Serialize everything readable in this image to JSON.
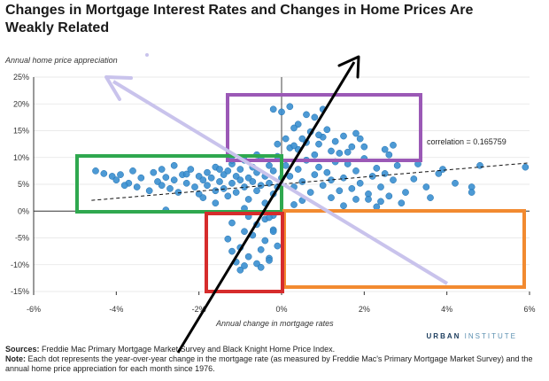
{
  "title": "Changes in Mortgage Interest Rates and Changes in Home Prices Are Weakly Related",
  "brand": {
    "part1": "URBAN",
    "part2": "INSTITUTE"
  },
  "sources": {
    "label": "Sources:",
    "text": "Freddie Mac Primary Mortgage Market Survey and Black Knight Home Price Index."
  },
  "note": {
    "label": "Note:",
    "text": "Each dot represents the year-over-year change in the mortgage rate (as measured by Freddie Mac's Primary Mortgage Market Survey) and the annual home price appreciation for each month since 1976."
  },
  "colors": {
    "dots": "#3a8fd0",
    "dot_stroke": "#1f6fae",
    "green": "#2fa84f",
    "purple": "#9b59b6",
    "orange": "#f28a30",
    "red": "#d62c2c",
    "lavender": "#c9c3ec",
    "black": "#000000"
  },
  "chart_data": {
    "type": "scatter",
    "title": "",
    "ylabel": "Annual home price appreciation",
    "xlabel": "Annual change in mortgage rates",
    "xlim": [
      -6,
      6
    ],
    "ylim": [
      -15,
      25
    ],
    "x_ticks": [
      -6,
      -4,
      -2,
      0,
      2,
      4,
      6
    ],
    "x_tick_labels": [
      "-6%",
      "-4%",
      "-2%",
      "0%",
      "2%",
      "4%",
      "6%"
    ],
    "y_ticks": [
      -15,
      -10,
      -5,
      0,
      5,
      10,
      15,
      20,
      25
    ],
    "y_tick_labels": [
      "-15%",
      "-10%",
      "-5%",
      "0%",
      "5%",
      "10%",
      "15%",
      "20%",
      "25%"
    ],
    "grid": "horizontal",
    "annotation": "correlation = 0.165759",
    "trendline": {
      "x": [
        -4.6,
        6
      ],
      "y": [
        2,
        9
      ]
    },
    "points": [
      [
        -4.5,
        7.5
      ],
      [
        -4.3,
        7
      ],
      [
        -4.1,
        6.5
      ],
      [
        -4.0,
        5.8
      ],
      [
        -3.9,
        6.8
      ],
      [
        -3.7,
        5.2
      ],
      [
        -3.6,
        7.5
      ],
      [
        -3.5,
        4.5
      ],
      [
        -3.4,
        6.2
      ],
      [
        -3.2,
        3.8
      ],
      [
        -3.1,
        7.2
      ],
      [
        -3.0,
        5.5
      ],
      [
        -2.9,
        4.8
      ],
      [
        -2.8,
        6.3
      ],
      [
        -2.7,
        4.2
      ],
      [
        -2.6,
        8.5
      ],
      [
        -2.6,
        5.8
      ],
      [
        -2.5,
        3.5
      ],
      [
        -2.4,
        6.8
      ],
      [
        -2.3,
        5.2
      ],
      [
        -2.2,
        7.8
      ],
      [
        -2.1,
        4.5
      ],
      [
        -2.0,
        6.5
      ],
      [
        -2.0,
        3.2
      ],
      [
        -1.9,
        5.8
      ],
      [
        -1.8,
        7.2
      ],
      [
        -1.8,
        4.8
      ],
      [
        -1.7,
        6.2
      ],
      [
        -1.6,
        3.8
      ],
      [
        -1.6,
        8.2
      ],
      [
        -1.5,
        5.5
      ],
      [
        -1.4,
        6.8
      ],
      [
        -1.4,
        4.2
      ],
      [
        -1.3,
        7.5
      ],
      [
        -1.3,
        2.8
      ],
      [
        -1.2,
        5.2
      ],
      [
        -1.2,
        8.8
      ],
      [
        -1.1,
        6.5
      ],
      [
        -1.1,
        3.5
      ],
      [
        -1.0,
        5.8
      ],
      [
        -1.0,
        7.8
      ],
      [
        -0.9,
        4.5
      ],
      [
        -0.9,
        9.5
      ],
      [
        -0.8,
        6.2
      ],
      [
        -0.8,
        2.2
      ],
      [
        -0.7,
        5.5
      ],
      [
        -0.7,
        8.2
      ],
      [
        -0.6,
        3.8
      ],
      [
        -0.6,
        7.2
      ],
      [
        -0.5,
        4.8
      ],
      [
        -0.5,
        9.8
      ],
      [
        -0.4,
        6.5
      ],
      [
        -0.4,
        1.5
      ],
      [
        -0.3,
        5.2
      ],
      [
        -0.3,
        8.5
      ],
      [
        -0.2,
        3.2
      ],
      [
        -0.2,
        7.5
      ],
      [
        -0.1,
        4.5
      ],
      [
        -0.1,
        10.2
      ],
      [
        0.0,
        6.2
      ],
      [
        -3.8,
        4.8
      ],
      [
        -2.9,
        7.8
      ],
      [
        -1.9,
        2.5
      ],
      [
        -1.5,
        7.8
      ],
      [
        -0.6,
        10.5
      ],
      [
        -1.2,
        9.5
      ],
      [
        -2.3,
        6.9
      ],
      [
        -0.9,
        0.5
      ],
      [
        -2.8,
        0.2
      ],
      [
        -1.6,
        1.5
      ],
      [
        -1.3,
        -5.2
      ],
      [
        -1.2,
        -7.5
      ],
      [
        -1.1,
        -9.5
      ],
      [
        -1.0,
        -6.8
      ],
      [
        -0.9,
        -10.2
      ],
      [
        -0.8,
        -8.5
      ],
      [
        -0.7,
        -4.5
      ],
      [
        -0.6,
        -9.8
      ],
      [
        -0.5,
        -7.2
      ],
      [
        -0.4,
        -5.5
      ],
      [
        -0.3,
        -8.8
      ],
      [
        -0.2,
        -3.5
      ],
      [
        -0.1,
        -6.5
      ],
      [
        -0.3,
        -9.2
      ],
      [
        -0.6,
        -2.5
      ],
      [
        -0.9,
        -3.8
      ],
      [
        -1.2,
        -2.2
      ],
      [
        -0.4,
        -1.5
      ],
      [
        -0.2,
        -0.8
      ],
      [
        -1.0,
        -11
      ],
      [
        -0.5,
        -10.5
      ],
      [
        -0.2,
        -3.8
      ],
      [
        -0.3,
        -1.2
      ],
      [
        -0.8,
        -1.0
      ],
      [
        -0.2,
        19
      ],
      [
        0.0,
        18.5
      ],
      [
        0.2,
        19.5
      ],
      [
        0.4,
        16.2
      ],
      [
        0.6,
        18
      ],
      [
        0.8,
        17.5
      ],
      [
        1.0,
        19
      ],
      [
        0.3,
        15.5
      ],
      [
        0.5,
        13.5
      ],
      [
        0.7,
        14.8
      ],
      [
        0.9,
        12.5
      ],
      [
        1.1,
        15.2
      ],
      [
        1.3,
        13
      ],
      [
        1.5,
        14
      ],
      [
        1.7,
        12
      ],
      [
        1.8,
        14.5
      ],
      [
        0.1,
        13.5
      ],
      [
        0.4,
        11.5
      ],
      [
        0.6,
        12.8
      ],
      [
        1.2,
        11.2
      ],
      [
        1.4,
        10.8
      ],
      [
        0.2,
        11.8
      ],
      [
        0.8,
        10.5
      ],
      [
        1.6,
        11
      ],
      [
        -0.1,
        12.5
      ],
      [
        1.9,
        13.5
      ],
      [
        2.0,
        12
      ],
      [
        1.0,
        13.8
      ],
      [
        0.3,
        12.2
      ],
      [
        0.9,
        14.2
      ],
      [
        0.1,
        8.5
      ],
      [
        0.2,
        6.5
      ],
      [
        0.3,
        4.5
      ],
      [
        0.4,
        7.8
      ],
      [
        0.5,
        5.5
      ],
      [
        0.6,
        9.5
      ],
      [
        0.7,
        3.5
      ],
      [
        0.8,
        6.8
      ],
      [
        0.9,
        8.2
      ],
      [
        1.0,
        4.8
      ],
      [
        1.1,
        7.2
      ],
      [
        1.2,
        5.8
      ],
      [
        1.3,
        9.2
      ],
      [
        1.4,
        3.8
      ],
      [
        1.5,
        6.2
      ],
      [
        1.6,
        8.8
      ],
      [
        1.7,
        4.2
      ],
      [
        1.8,
        7.5
      ],
      [
        1.9,
        5.2
      ],
      [
        2.0,
        9.8
      ],
      [
        2.1,
        3.2
      ],
      [
        2.2,
        6.5
      ],
      [
        2.3,
        8
      ],
      [
        2.4,
        4.5
      ],
      [
        2.5,
        7
      ],
      [
        2.6,
        2.8
      ],
      [
        2.7,
        5.8
      ],
      [
        2.8,
        8.5
      ],
      [
        3.0,
        3.5
      ],
      [
        3.2,
        6
      ],
      [
        3.5,
        4.5
      ],
      [
        3.8,
        7
      ],
      [
        4.2,
        5.2
      ],
      [
        4.6,
        4.5
      ],
      [
        4.8,
        8.5
      ],
      [
        5.9,
        8.2
      ],
      [
        3.6,
        2.5
      ],
      [
        2.9,
        1.5
      ],
      [
        2.4,
        1.8
      ],
      [
        1.8,
        2.2
      ],
      [
        0.5,
        2.0
      ],
      [
        1.2,
        2.5
      ],
      [
        3.3,
        8.8
      ],
      [
        2.6,
        10.5
      ],
      [
        2.5,
        11.5
      ],
      [
        2.7,
        12.3
      ],
      [
        2.3,
        0.8
      ],
      [
        4.6,
        3.5
      ],
      [
        3.9,
        7.8
      ],
      [
        0.3,
        1.2
      ],
      [
        1.5,
        1.0
      ],
      [
        2.1,
        2.2
      ]
    ]
  }
}
